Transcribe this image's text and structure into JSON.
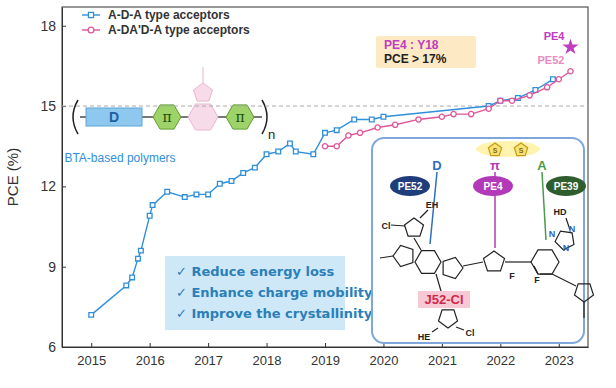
{
  "chart_data": {
    "type": "line",
    "y_label": "PCE (%)",
    "xlim": [
      2014.5,
      2023.5
    ],
    "xticks": [
      2015,
      2016,
      2017,
      2018,
      2019,
      2020,
      2021,
      2022,
      2023
    ],
    "ylim": [
      6,
      18.7
    ],
    "yticks": [
      6,
      9,
      12,
      15,
      18
    ],
    "grid": false,
    "legend": "upper left",
    "series": [
      {
        "name": "A-D-A type acceptors",
        "color": "#2f8fdc",
        "marker": "square",
        "x": [
          2015.0,
          2015.6,
          2015.7,
          2015.8,
          2015.85,
          2016.0,
          2016.05,
          2016.3,
          2016.6,
          2016.8,
          2017.0,
          2017.2,
          2017.4,
          2017.6,
          2017.8,
          2018.0,
          2018.2,
          2018.4,
          2018.5,
          2018.8,
          2019.0,
          2019.2,
          2019.5,
          2019.8,
          2020.0,
          2021.8,
          2022.0,
          2022.3,
          2022.6,
          2022.9
        ],
        "values": [
          7.2,
          8.3,
          8.6,
          9.3,
          9.6,
          10.9,
          11.3,
          11.8,
          11.6,
          11.7,
          11.7,
          12.1,
          12.2,
          12.5,
          12.7,
          13.2,
          13.3,
          13.6,
          13.3,
          13.2,
          14.0,
          14.1,
          14.5,
          14.5,
          14.6,
          15.0,
          15.2,
          15.3,
          15.6,
          16.0
        ]
      },
      {
        "name": "A-DA'D-A type acceptors",
        "color": "#e0559a",
        "marker": "circle",
        "x": [
          2019.0,
          2019.2,
          2019.4,
          2019.6,
          2019.9,
          2020.2,
          2020.6,
          2021.0,
          2021.2,
          2021.5,
          2021.8,
          2022.0,
          2022.2,
          2022.5,
          2022.8,
          2023.0,
          2023.2
        ],
        "values": [
          13.5,
          13.5,
          13.9,
          14.0,
          14.2,
          14.3,
          14.5,
          14.6,
          14.7,
          14.7,
          14.9,
          15.2,
          15.2,
          15.4,
          15.7,
          16.0,
          16.3
        ]
      }
    ],
    "reference_line": {
      "value": 15,
      "line_style": "dashed"
    },
    "annotations": [
      {
        "text": "PE4",
        "x": 2023.2,
        "y": 17.2,
        "marker": "star",
        "color": "#c03cc0"
      },
      {
        "text": "PE52",
        "x": 2023.2,
        "y": 16.3,
        "color": "#e98bc0"
      }
    ],
    "callout": [
      "PE4 : Y18",
      "PCE > 17%"
    ],
    "structure": {
      "units": [
        "D",
        "π",
        "π"
      ],
      "repeat": "n",
      "caption": "BTA-based polymers"
    },
    "checklist": [
      "✓ Reduce energy loss",
      "✓ Enhance charge mobility",
      "✓ Improve the crystallinity"
    ],
    "inset": {
      "roles": [
        {
          "symbol": "D",
          "polymer": "PE52"
        },
        {
          "symbol": "π",
          "polymer": "PE4"
        },
        {
          "symbol": "A",
          "polymer": "PE39"
        }
      ],
      "name": "J52-Cl",
      "atoms": [
        "Cl",
        "EH",
        "HE",
        "Cl",
        "HD",
        "N",
        "N",
        "N",
        "F",
        "F",
        "S",
        "S"
      ]
    }
  }
}
